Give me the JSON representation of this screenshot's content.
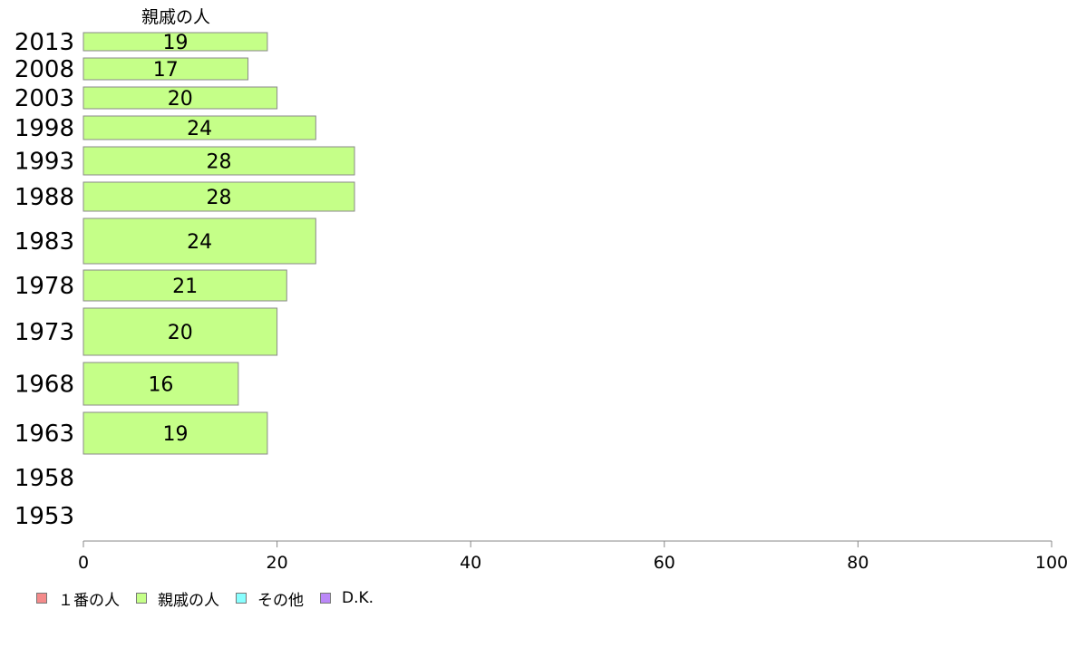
{
  "chart_data": {
    "type": "bar",
    "orientation": "horizontal",
    "series_header": "親戚の人",
    "categories": [
      "2013",
      "2008",
      "2003",
      "1998",
      "1993",
      "1988",
      "1983",
      "1978",
      "1973",
      "1968",
      "1963",
      "1958",
      "1953"
    ],
    "series": [
      {
        "name": "親戚の人",
        "color": "#c5ff88",
        "values": [
          19,
          17,
          20,
          24,
          28,
          28,
          24,
          21,
          20,
          16,
          19,
          null,
          null
        ]
      }
    ],
    "xlim": [
      0,
      100
    ],
    "xticks": [
      0,
      20,
      40,
      60,
      80,
      100
    ],
    "grid": false,
    "legend_position": "bottom-left",
    "legend": [
      {
        "label": "１番の人",
        "color": "#f48a8a"
      },
      {
        "label": "親戚の人",
        "color": "#c5ff88"
      },
      {
        "label": "その他",
        "color": "#88ffff"
      },
      {
        "label": "D.K.",
        "color": "#bb88f8"
      }
    ]
  }
}
